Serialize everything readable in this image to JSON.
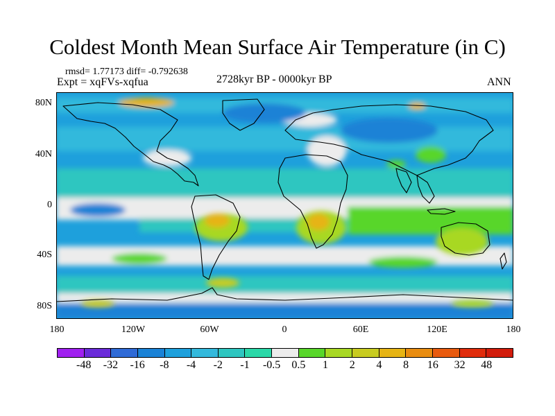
{
  "figure": {
    "title": "Coldest Month Mean Surface Air Temperature (in C)",
    "stats": "rmsd= 1.77173 diff= -0.792638",
    "experiment": "Expt = xqFVs-xqfua",
    "period": "2728kyr BP - 0000kyr BP",
    "season": "ANN"
  },
  "axes": {
    "lat_labels": [
      "80N",
      "40N",
      "0",
      "40S",
      "80S"
    ],
    "lon_labels": [
      "180",
      "120W",
      "60W",
      "0",
      "60E",
      "120E",
      "180"
    ]
  },
  "colorbar": {
    "labels": [
      "-48",
      "-32",
      "-16",
      "-8",
      "-4",
      "-2",
      "-1",
      "-0.5",
      "0.5",
      "1",
      "2",
      "4",
      "8",
      "16",
      "32",
      "48"
    ],
    "colors": [
      "#a020f0",
      "#6a2bd9",
      "#2f6ad6",
      "#1a82d6",
      "#1ea0dc",
      "#33b9dc",
      "#2ec6c0",
      "#2ad8a8",
      "#ececec",
      "#58d62a",
      "#a8d824",
      "#c8cc20",
      "#e6b414",
      "#e88c10",
      "#e85a0e",
      "#e02c0c",
      "#d21c0c"
    ]
  },
  "map_colors": {
    "ocean_base": "#1ea0dc",
    "light": "#33b9dc",
    "teal": "#2ec6c0",
    "neutral": "#ececec",
    "green": "#58d62a",
    "yellow_green": "#a8d824",
    "olive": "#c8cc20",
    "orange": "#e6b414",
    "deep": "#1a82d6"
  }
}
